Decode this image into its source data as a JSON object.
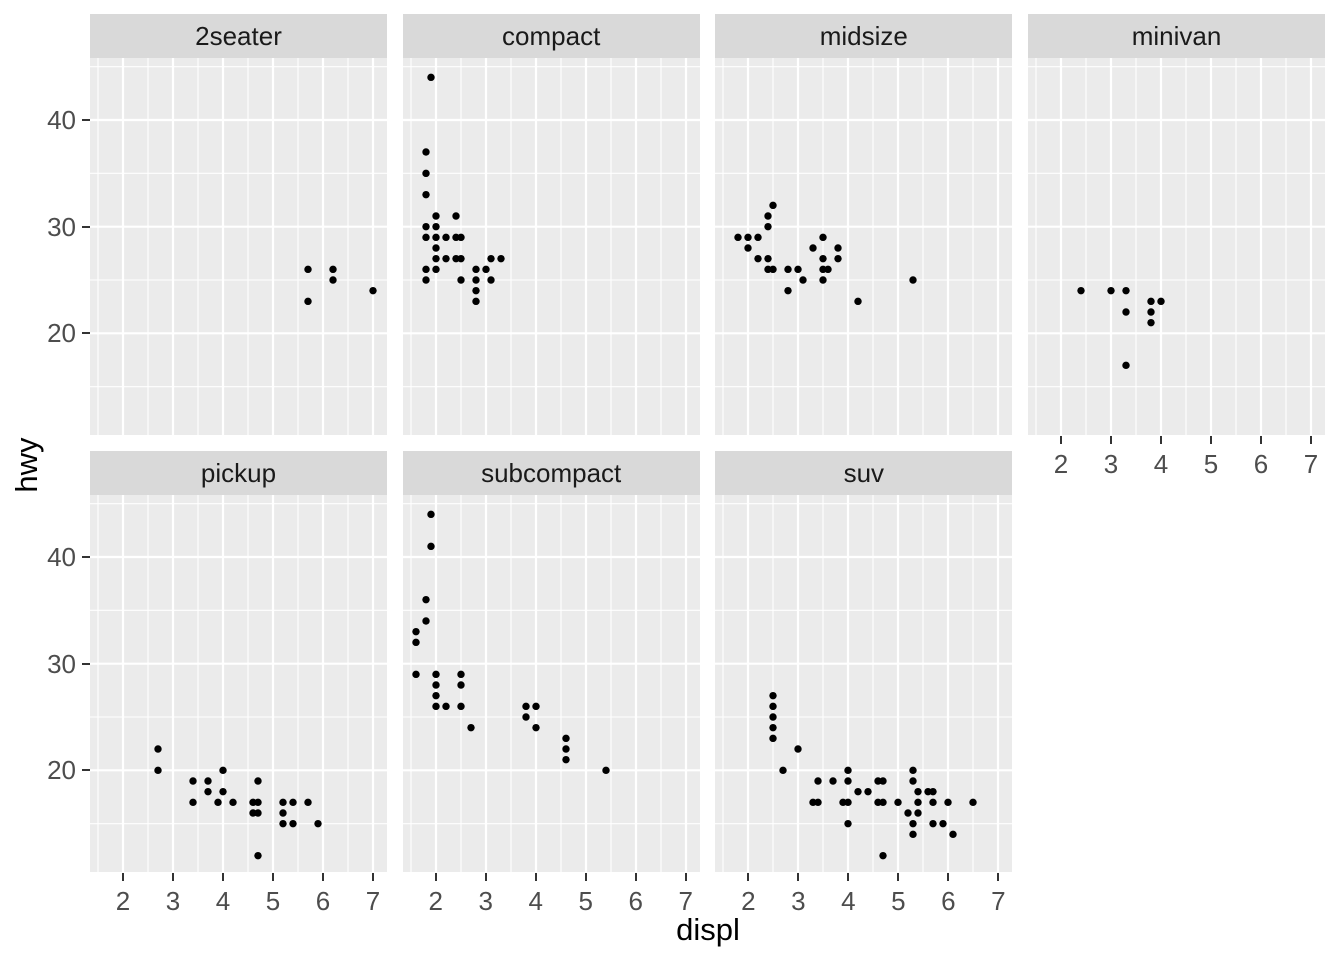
{
  "chart_data": {
    "type": "scatter",
    "title": "",
    "xlabel": "displ",
    "ylabel": "hwy",
    "facet_layout": {
      "rows": 2,
      "cols": 4,
      "order": "row-major"
    },
    "x_range": [
      1.33,
      7.27
    ],
    "y_range": [
      10.4,
      45.8
    ],
    "grid": {
      "major": "on",
      "minor": "on"
    },
    "legend": "none",
    "x_ticks": [
      {
        "value": 2,
        "label": "2"
      },
      {
        "value": 3,
        "label": "3"
      },
      {
        "value": 4,
        "label": "4"
      },
      {
        "value": 5,
        "label": "5"
      },
      {
        "value": 6,
        "label": "6"
      },
      {
        "value": 7,
        "label": "7"
      }
    ],
    "y_ticks": [
      {
        "value": 20,
        "label": "20"
      },
      {
        "value": 30,
        "label": "30"
      },
      {
        "value": 40,
        "label": "40"
      }
    ],
    "x_minor_ticks": [
      1.5,
      2.5,
      3.5,
      4.5,
      5.5,
      6.5
    ],
    "y_minor_ticks": [
      15,
      25,
      35,
      45
    ],
    "facets": [
      {
        "label": "2seater",
        "points": [
          [
            5.7,
            26
          ],
          [
            5.7,
            23
          ],
          [
            6.2,
            26
          ],
          [
            6.2,
            25
          ],
          [
            7.0,
            24
          ]
        ]
      },
      {
        "label": "compact",
        "points": [
          [
            1.9,
            44
          ],
          [
            1.8,
            37
          ],
          [
            1.8,
            35
          ],
          [
            1.8,
            33
          ],
          [
            2.0,
            31
          ],
          [
            2.4,
            31
          ],
          [
            1.8,
            30
          ],
          [
            2.0,
            30
          ],
          [
            1.8,
            29
          ],
          [
            2.0,
            29
          ],
          [
            2.2,
            29
          ],
          [
            2.4,
            29
          ],
          [
            2.5,
            29
          ],
          [
            2.0,
            28
          ],
          [
            2.0,
            27
          ],
          [
            2.2,
            27
          ],
          [
            2.4,
            27
          ],
          [
            2.5,
            27
          ],
          [
            3.1,
            27
          ],
          [
            3.3,
            27
          ],
          [
            1.8,
            26
          ],
          [
            2.0,
            26
          ],
          [
            2.8,
            26
          ],
          [
            3.0,
            26
          ],
          [
            1.8,
            25
          ],
          [
            2.5,
            25
          ],
          [
            2.8,
            25
          ],
          [
            3.1,
            25
          ],
          [
            2.8,
            24
          ],
          [
            2.8,
            23
          ]
        ]
      },
      {
        "label": "midsize",
        "points": [
          [
            2.5,
            32
          ],
          [
            2.4,
            31
          ],
          [
            2.4,
            30
          ],
          [
            1.8,
            29
          ],
          [
            2.0,
            29
          ],
          [
            2.2,
            29
          ],
          [
            3.5,
            29
          ],
          [
            2.0,
            28
          ],
          [
            3.3,
            28
          ],
          [
            3.8,
            28
          ],
          [
            2.2,
            27
          ],
          [
            2.4,
            27
          ],
          [
            3.5,
            27
          ],
          [
            3.8,
            27
          ],
          [
            2.4,
            26
          ],
          [
            2.5,
            26
          ],
          [
            2.8,
            26
          ],
          [
            3.0,
            26
          ],
          [
            3.5,
            26
          ],
          [
            3.6,
            26
          ],
          [
            3.1,
            25
          ],
          [
            3.5,
            25
          ],
          [
            5.3,
            25
          ],
          [
            2.8,
            24
          ],
          [
            4.2,
            23
          ]
        ]
      },
      {
        "label": "minivan",
        "points": [
          [
            2.4,
            24
          ],
          [
            3.0,
            24
          ],
          [
            3.3,
            24
          ],
          [
            3.3,
            22
          ],
          [
            3.3,
            17
          ],
          [
            3.8,
            23
          ],
          [
            3.8,
            22
          ],
          [
            3.8,
            21
          ],
          [
            4.0,
            23
          ]
        ]
      },
      {
        "label": "pickup",
        "points": [
          [
            2.7,
            22
          ],
          [
            2.7,
            20
          ],
          [
            4.0,
            20
          ],
          [
            3.4,
            19
          ],
          [
            3.7,
            19
          ],
          [
            4.7,
            19
          ],
          [
            3.7,
            18
          ],
          [
            4.0,
            18
          ],
          [
            3.4,
            17
          ],
          [
            3.9,
            17
          ],
          [
            4.2,
            17
          ],
          [
            4.6,
            17
          ],
          [
            4.7,
            17
          ],
          [
            5.2,
            17
          ],
          [
            5.4,
            17
          ],
          [
            5.7,
            17
          ],
          [
            4.6,
            16
          ],
          [
            4.7,
            16
          ],
          [
            5.2,
            16
          ],
          [
            5.2,
            15
          ],
          [
            5.4,
            15
          ],
          [
            5.9,
            15
          ],
          [
            4.7,
            12
          ]
        ]
      },
      {
        "label": "subcompact",
        "points": [
          [
            1.9,
            44
          ],
          [
            1.9,
            41
          ],
          [
            1.8,
            36
          ],
          [
            1.8,
            34
          ],
          [
            1.6,
            33
          ],
          [
            1.6,
            32
          ],
          [
            1.6,
            29
          ],
          [
            2.0,
            29
          ],
          [
            2.5,
            29
          ],
          [
            2.0,
            28
          ],
          [
            2.5,
            28
          ],
          [
            2.0,
            27
          ],
          [
            2.0,
            26
          ],
          [
            2.2,
            26
          ],
          [
            2.5,
            26
          ],
          [
            2.7,
            24
          ],
          [
            3.8,
            26
          ],
          [
            4.0,
            26
          ],
          [
            3.8,
            25
          ],
          [
            4.0,
            24
          ],
          [
            4.6,
            23
          ],
          [
            4.6,
            22
          ],
          [
            4.6,
            21
          ],
          [
            5.4,
            20
          ]
        ]
      },
      {
        "label": "suv",
        "points": [
          [
            2.5,
            27
          ],
          [
            2.5,
            26
          ],
          [
            2.5,
            25
          ],
          [
            2.5,
            24
          ],
          [
            2.5,
            23
          ],
          [
            2.7,
            20
          ],
          [
            3.0,
            22
          ],
          [
            4.0,
            20
          ],
          [
            5.3,
            20
          ],
          [
            3.4,
            19
          ],
          [
            3.7,
            19
          ],
          [
            4.0,
            19
          ],
          [
            4.6,
            19
          ],
          [
            4.7,
            19
          ],
          [
            5.3,
            19
          ],
          [
            4.2,
            18
          ],
          [
            4.4,
            18
          ],
          [
            5.4,
            18
          ],
          [
            5.6,
            18
          ],
          [
            5.7,
            18
          ],
          [
            3.3,
            17
          ],
          [
            3.4,
            17
          ],
          [
            3.9,
            17
          ],
          [
            4.0,
            17
          ],
          [
            4.6,
            17
          ],
          [
            4.7,
            17
          ],
          [
            5.0,
            17
          ],
          [
            5.4,
            17
          ],
          [
            5.7,
            17
          ],
          [
            6.0,
            17
          ],
          [
            6.5,
            17
          ],
          [
            5.2,
            16
          ],
          [
            5.4,
            16
          ],
          [
            4.0,
            15
          ],
          [
            5.3,
            15
          ],
          [
            5.7,
            15
          ],
          [
            5.9,
            15
          ],
          [
            5.3,
            14
          ],
          [
            6.1,
            14
          ],
          [
            4.7,
            12
          ]
        ]
      }
    ]
  },
  "style": {
    "panel_background": "#EBEBEB",
    "strip_background": "#D9D9D9",
    "strip_text_color": "#1A1A1A",
    "grid_color": "#FFFFFF",
    "point_color": "#000000",
    "tick_mark_color": "#333333",
    "tick_label_color": "#4D4D4D",
    "axis_title_color": "#000000"
  }
}
